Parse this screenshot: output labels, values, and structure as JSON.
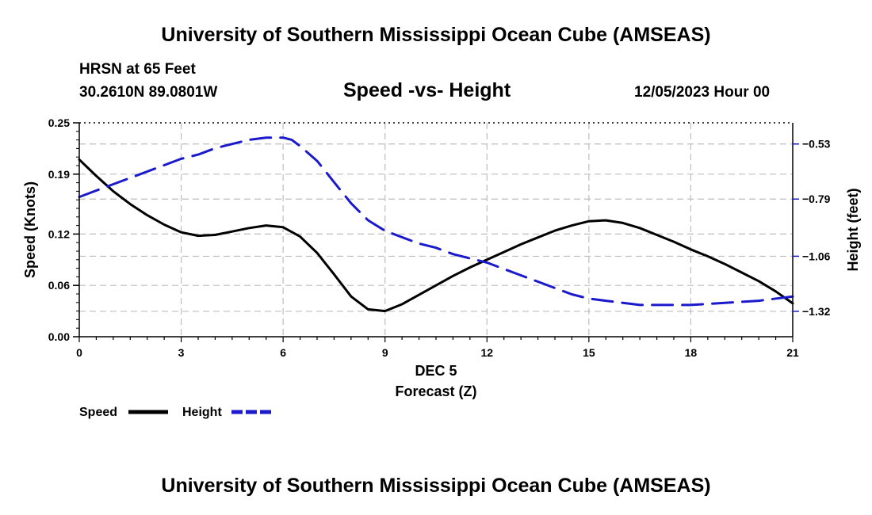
{
  "header": {
    "title_top": "University of Southern Mississippi Ocean Cube (AMSEAS)",
    "station": "HRSN at 65 Feet",
    "coords": "30.2610N  89.0801W",
    "chart_title": "Speed -vs- Height",
    "datetime": "12/05/2023 Hour 00",
    "title_bottom": "University of Southern Mississippi Ocean Cube (AMSEAS)"
  },
  "legend": {
    "speed_label": "Speed",
    "height_label": "Height"
  },
  "colors": {
    "speed": "#000000",
    "height": "#1a1acc",
    "grid": "#bdbdbd"
  },
  "chart_data": {
    "type": "line",
    "title": "Speed -vs- Height",
    "xlabel": "Forecast (Z)",
    "xlabel_date": "DEC 5",
    "ylabel_left": "Speed (Knots)",
    "ylabel_right": "Height (feet)",
    "xlim": [
      0,
      21
    ],
    "ylim_left": [
      0,
      0.25
    ],
    "ylim_right": [
      -1.44,
      -0.43
    ],
    "x_ticks": [
      0,
      3,
      6,
      9,
      12,
      15,
      18,
      21
    ],
    "x_tick_labels": [
      "0",
      "3",
      "6",
      "9",
      "12",
      "15",
      "18",
      "21"
    ],
    "y_left_ticks": [
      0,
      0.06,
      0.12,
      0.19,
      0.25
    ],
    "y_left_tick_labels": [
      "0.00",
      "0.06",
      "0.12",
      "0.19",
      "0.25"
    ],
    "y_right_ticks": [
      -0.53,
      -0.79,
      -1.06,
      -1.32
    ],
    "y_right_tick_labels": [
      "−0.53",
      "−0.79",
      "−1.06",
      "−1.32"
    ],
    "grid": true,
    "series": [
      {
        "name": "Speed",
        "axis": "left",
        "style": "solid",
        "x": [
          0,
          0.5,
          1,
          1.5,
          2,
          2.5,
          3,
          3.5,
          4,
          4.5,
          5,
          5.5,
          6,
          6.5,
          7,
          7.5,
          8,
          8.5,
          9,
          9.5,
          10,
          10.5,
          11,
          11.5,
          12,
          12.5,
          13,
          13.5,
          14,
          14.5,
          15,
          15.5,
          16,
          16.5,
          17,
          17.5,
          18,
          18.5,
          19,
          19.5,
          20,
          20.5,
          21
        ],
        "values": [
          0.207,
          0.188,
          0.17,
          0.155,
          0.142,
          0.131,
          0.122,
          0.118,
          0.119,
          0.123,
          0.127,
          0.13,
          0.128,
          0.117,
          0.098,
          0.073,
          0.047,
          0.032,
          0.03,
          0.038,
          0.049,
          0.06,
          0.071,
          0.081,
          0.09,
          0.099,
          0.108,
          0.116,
          0.124,
          0.13,
          0.135,
          0.136,
          0.133,
          0.127,
          0.119,
          0.111,
          0.102,
          0.094,
          0.085,
          0.075,
          0.065,
          0.053,
          0.039
        ]
      },
      {
        "name": "Height",
        "axis": "right",
        "style": "dashed",
        "x": [
          0,
          0.5,
          1,
          1.5,
          2,
          2.5,
          3,
          3.5,
          4,
          4.5,
          5,
          5.5,
          6,
          6.25,
          6.5,
          7,
          7.5,
          8,
          8.5,
          9,
          9.5,
          10,
          10.5,
          11,
          11.5,
          12,
          12.5,
          13,
          13.5,
          14,
          14.5,
          15,
          15.5,
          16,
          16.5,
          17,
          18,
          19,
          20,
          21
        ],
        "values": [
          -0.78,
          -0.75,
          -0.72,
          -0.69,
          -0.66,
          -0.63,
          -0.6,
          -0.58,
          -0.55,
          -0.53,
          -0.51,
          -0.5,
          -0.5,
          -0.51,
          -0.54,
          -0.61,
          -0.71,
          -0.81,
          -0.89,
          -0.94,
          -0.97,
          -1.0,
          -1.02,
          -1.05,
          -1.07,
          -1.09,
          -1.12,
          -1.15,
          -1.18,
          -1.21,
          -1.24,
          -1.26,
          -1.27,
          -1.28,
          -1.29,
          -1.29,
          -1.29,
          -1.28,
          -1.27,
          -1.25
        ]
      }
    ]
  }
}
